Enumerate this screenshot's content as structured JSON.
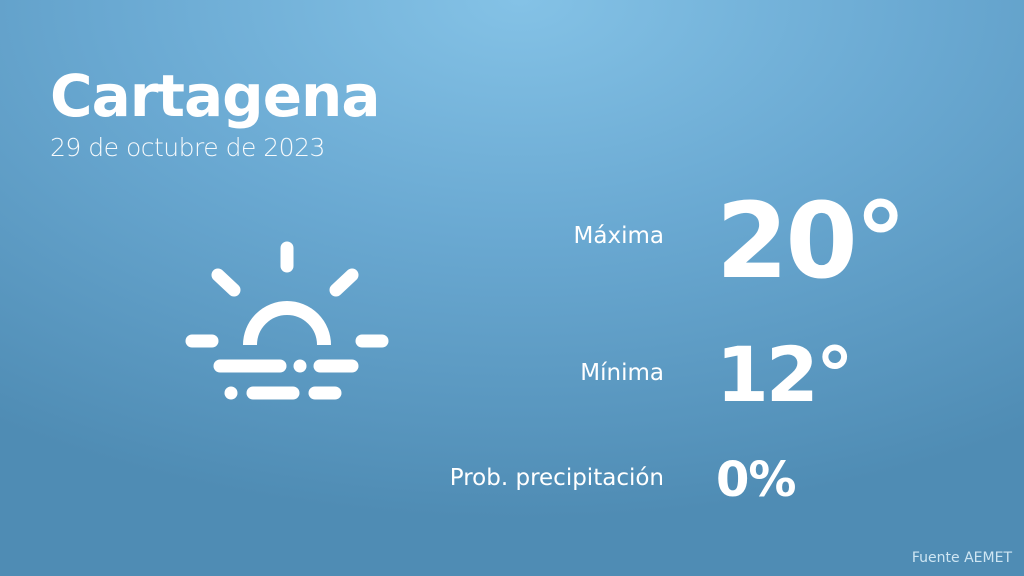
{
  "city": "Cartagena",
  "date": "29 de octubre de 2023",
  "icon": "sun-rising-fog-icon",
  "rows": [
    {
      "label": "Máxima",
      "value": "20°"
    },
    {
      "label": "Mínima",
      "value": "12°"
    },
    {
      "label": "Prob. precipitación",
      "value": "0%"
    }
  ],
  "source": "Fuente AEMET",
  "colors": {
    "background_top": "#84c2e6",
    "background_bottom": "#4f8cb4",
    "text": "#ffffff"
  }
}
